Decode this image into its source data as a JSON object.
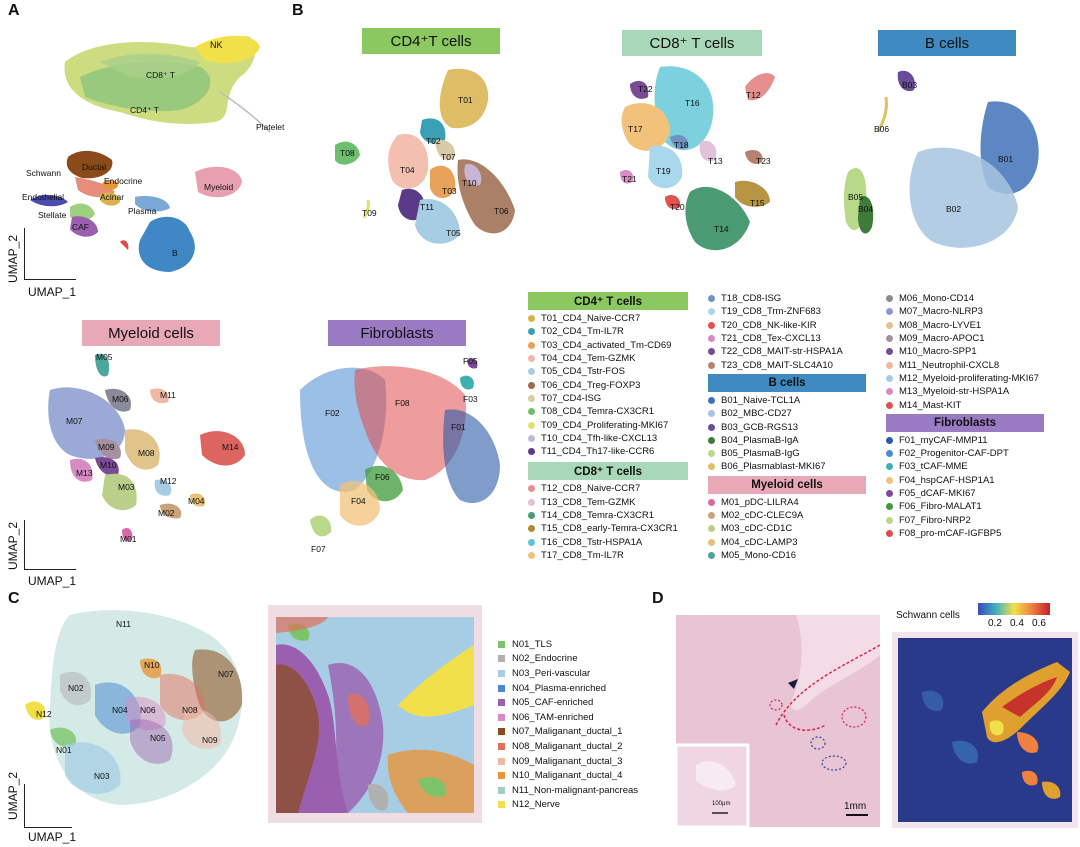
{
  "panels": {
    "a": "A",
    "b": "B",
    "c": "C",
    "d": "D"
  },
  "axes": {
    "x": "UMAP_1",
    "y": "UMAP_2"
  },
  "panelA": {
    "labels": [
      "NK",
      "CD8⁺ T",
      "CD4⁺ T",
      "Platelet",
      "Schwann",
      "Ductal",
      "Endocrine",
      "Endothelial",
      "Acinar",
      "Myeloid",
      "Stellate",
      "Plasma",
      "CAF",
      "B"
    ]
  },
  "banners": {
    "cd4": "CD4⁺T cells",
    "cd8": "CD8⁺ T cells",
    "b": "B cells",
    "myeloid": "Myeloid cells",
    "fibro": "Fibroblasts"
  },
  "panelB": {
    "cd4_labels": [
      "T01",
      "T02",
      "T07",
      "T08",
      "T04",
      "T03",
      "T10",
      "T11",
      "T06",
      "T09",
      "T05"
    ],
    "cd8_labels": [
      "T22",
      "T16",
      "T12",
      "T17",
      "T18",
      "T13",
      "T23",
      "T19",
      "T21",
      "T20",
      "T15",
      "T14"
    ],
    "b_labels": [
      "B03",
      "B06",
      "B01",
      "B05",
      "B04",
      "B02"
    ],
    "myeloid_labels": [
      "M05",
      "M06",
      "M11",
      "M07",
      "M14",
      "M09",
      "M08",
      "M10",
      "M13",
      "M03",
      "M12",
      "M04",
      "M02",
      "M01"
    ],
    "fibro_labels": [
      "F05",
      "F03",
      "F08",
      "F02",
      "F01",
      "F06",
      "F04",
      "F07"
    ]
  },
  "legend": {
    "cd4_head": "CD4⁺ T cells",
    "cd4": [
      {
        "label": "T01_CD4_Naive-CCR7",
        "color": "#d9b24c"
      },
      {
        "label": "T02_CD4_Tm-IL7R",
        "color": "#3aa0b6"
      },
      {
        "label": "T03_CD4_activated_Tm-CD69",
        "color": "#e8a25a"
      },
      {
        "label": "T04_CD4_Tem-GZMK",
        "color": "#f2b8a6"
      },
      {
        "label": "T05_CD4_Tstr-FOS",
        "color": "#a6cde3"
      },
      {
        "label": "T06_CD4_Treg-FOXP3",
        "color": "#9b6a4b"
      },
      {
        "label": "T07_CD4-ISG",
        "color": "#d9c9a6"
      },
      {
        "label": "T08_CD4_Temra-CX3CR1",
        "color": "#6dbf6d"
      },
      {
        "label": "T09_CD4_Proliferating-MKI67",
        "color": "#e3e06b"
      },
      {
        "label": "T10_CD4_Tfh-like-CXCL13",
        "color": "#c8b4d4"
      },
      {
        "label": "T11_CD4_Th17-like-CCR6",
        "color": "#5b3a8a"
      }
    ],
    "cd8_head": "CD8⁺ T cells",
    "cd8": [
      {
        "label": "T12_CD8_Naive-CCR7",
        "color": "#e68f8f"
      },
      {
        "label": "T13_CD8_Tem-GZMK",
        "color": "#e3c1d9"
      },
      {
        "label": "T14_CD8_Temra-CX3CR1",
        "color": "#4a9a73"
      },
      {
        "label": "T15_CD8_early-Temra-CX3CR1",
        "color": "#b08a2f"
      },
      {
        "label": "T16_CD8_Tstr-HSPA1A",
        "color": "#5cc4d6"
      },
      {
        "label": "T17_CD8_Tm-IL7R",
        "color": "#f2c27a"
      },
      {
        "label": "T18_CD8-ISG",
        "color": "#6f93c4"
      },
      {
        "label": "T19_CD8_Trm-ZNF683",
        "color": "#a9d7ec"
      },
      {
        "label": "T20_CD8_NK-like-KIR",
        "color": "#e0514f"
      },
      {
        "label": "T21_CD8_Tex-CXCL13",
        "color": "#d98bc4"
      },
      {
        "label": "T22_CD8_MAIT-str-HSPA1A",
        "color": "#7b4a96"
      },
      {
        "label": "T23_CD8_MAIT-SLC4A10",
        "color": "#b88070"
      }
    ],
    "b_head": "B cells",
    "b": [
      {
        "label": "B01_Naive-TCL1A",
        "color": "#3f72b8"
      },
      {
        "label": "B02_MBC-CD27",
        "color": "#a6c4e0"
      },
      {
        "label": "B03_GCB-RGS13",
        "color": "#6a4a9a"
      },
      {
        "label": "B04_PlasmaB-IgA",
        "color": "#3e7a3a"
      },
      {
        "label": "B05_PlasmaB-IgG",
        "color": "#b9d98a"
      },
      {
        "label": "B06_Plasmablast-MKI67",
        "color": "#e0c060"
      }
    ],
    "myeloid_head": "Myeloid cells",
    "myeloid": [
      {
        "label": "M01_pDC-LILRA4",
        "color": "#d96aa8"
      },
      {
        "label": "M02_cDC-CLEC9A",
        "color": "#c9a37a"
      },
      {
        "label": "M03_cDC-CD1C",
        "color": "#b9cf8a"
      },
      {
        "label": "M04_cDC-LAMP3",
        "color": "#e8c27a"
      },
      {
        "label": "M05_Mono-CD16",
        "color": "#4aa89a"
      },
      {
        "label": "M06_Mono-CD14",
        "color": "#8a8a9a"
      },
      {
        "label": "M07_Macro-NLRP3",
        "color": "#8a9ad0"
      },
      {
        "label": "M08_Macro-LYVE1",
        "color": "#e0c48a"
      },
      {
        "label": "M09_Macro-APOC1",
        "color": "#a890a0"
      },
      {
        "label": "M10_Macro-SPP1",
        "color": "#7b4a96"
      },
      {
        "label": "M11_Neutrophil-CXCL8",
        "color": "#f2b8a6"
      },
      {
        "label": "M12_Myeloid-proliferating-MKI67",
        "color": "#a6cde3"
      },
      {
        "label": "M13_Myeloid-str-HSPA1A",
        "color": "#d98bc4"
      },
      {
        "label": "M14_Mast-KIT",
        "color": "#d9544f"
      }
    ],
    "fibro_head": "Fibroblasts",
    "fibro": [
      {
        "label": "F01_myCAF-MMP11",
        "color": "#2a5aa8"
      },
      {
        "label": "F02_Progenitor-CAF-DPT",
        "color": "#4a8ad0"
      },
      {
        "label": "F03_tCAF-MME",
        "color": "#3fb0b0"
      },
      {
        "label": "F04_hspCAF-HSP1A1",
        "color": "#f2c27a"
      },
      {
        "label": "F05_dCAF-MKI67",
        "color": "#7b4a96"
      },
      {
        "label": "F06_Fibro-MALAT1",
        "color": "#3e9a3a"
      },
      {
        "label": "F07_Fibro-NRP2",
        "color": "#b9d98a"
      },
      {
        "label": "F08_pro-mCAF-IGFBP5",
        "color": "#e04a4a"
      }
    ]
  },
  "panelC": {
    "umap_labels": [
      "N11",
      "N10",
      "N07",
      "N02",
      "N12",
      "N04",
      "N06",
      "N08",
      "N05",
      "N09",
      "N01",
      "N03"
    ],
    "niches": [
      {
        "label": "N01_TLS",
        "color": "#7bc46a"
      },
      {
        "label": "N02_Endocrine",
        "color": "#b0b0b0"
      },
      {
        "label": "N03_Peri-vascular",
        "color": "#a6cde3"
      },
      {
        "label": "N04_Plasma-enriched",
        "color": "#4a8ad0"
      },
      {
        "label": "N05_CAF-enriched",
        "color": "#9b5fb0"
      },
      {
        "label": "N06_TAM-enriched",
        "color": "#d98bc4"
      },
      {
        "label": "N07_Maliganant_ductal_1",
        "color": "#8a4a1a"
      },
      {
        "label": "N08_Maliganant_ductal_2",
        "color": "#e0705a"
      },
      {
        "label": "N09_Maliganant_ductal_3",
        "color": "#f2b8a6"
      },
      {
        "label": "N10_Maliganant_ductal_4",
        "color": "#e8963a"
      },
      {
        "label": "N11_Non-malignant-pancreas",
        "color": "#9fd0c8"
      },
      {
        "label": "N12_Nerve",
        "color": "#f2e04a"
      }
    ]
  },
  "panelD": {
    "colorbar_title": "Schwann cells",
    "colorbar_ticks": [
      "0.2",
      "0.4",
      "0.6"
    ],
    "scale_inset": "100μm",
    "scale_main": "1mm"
  }
}
